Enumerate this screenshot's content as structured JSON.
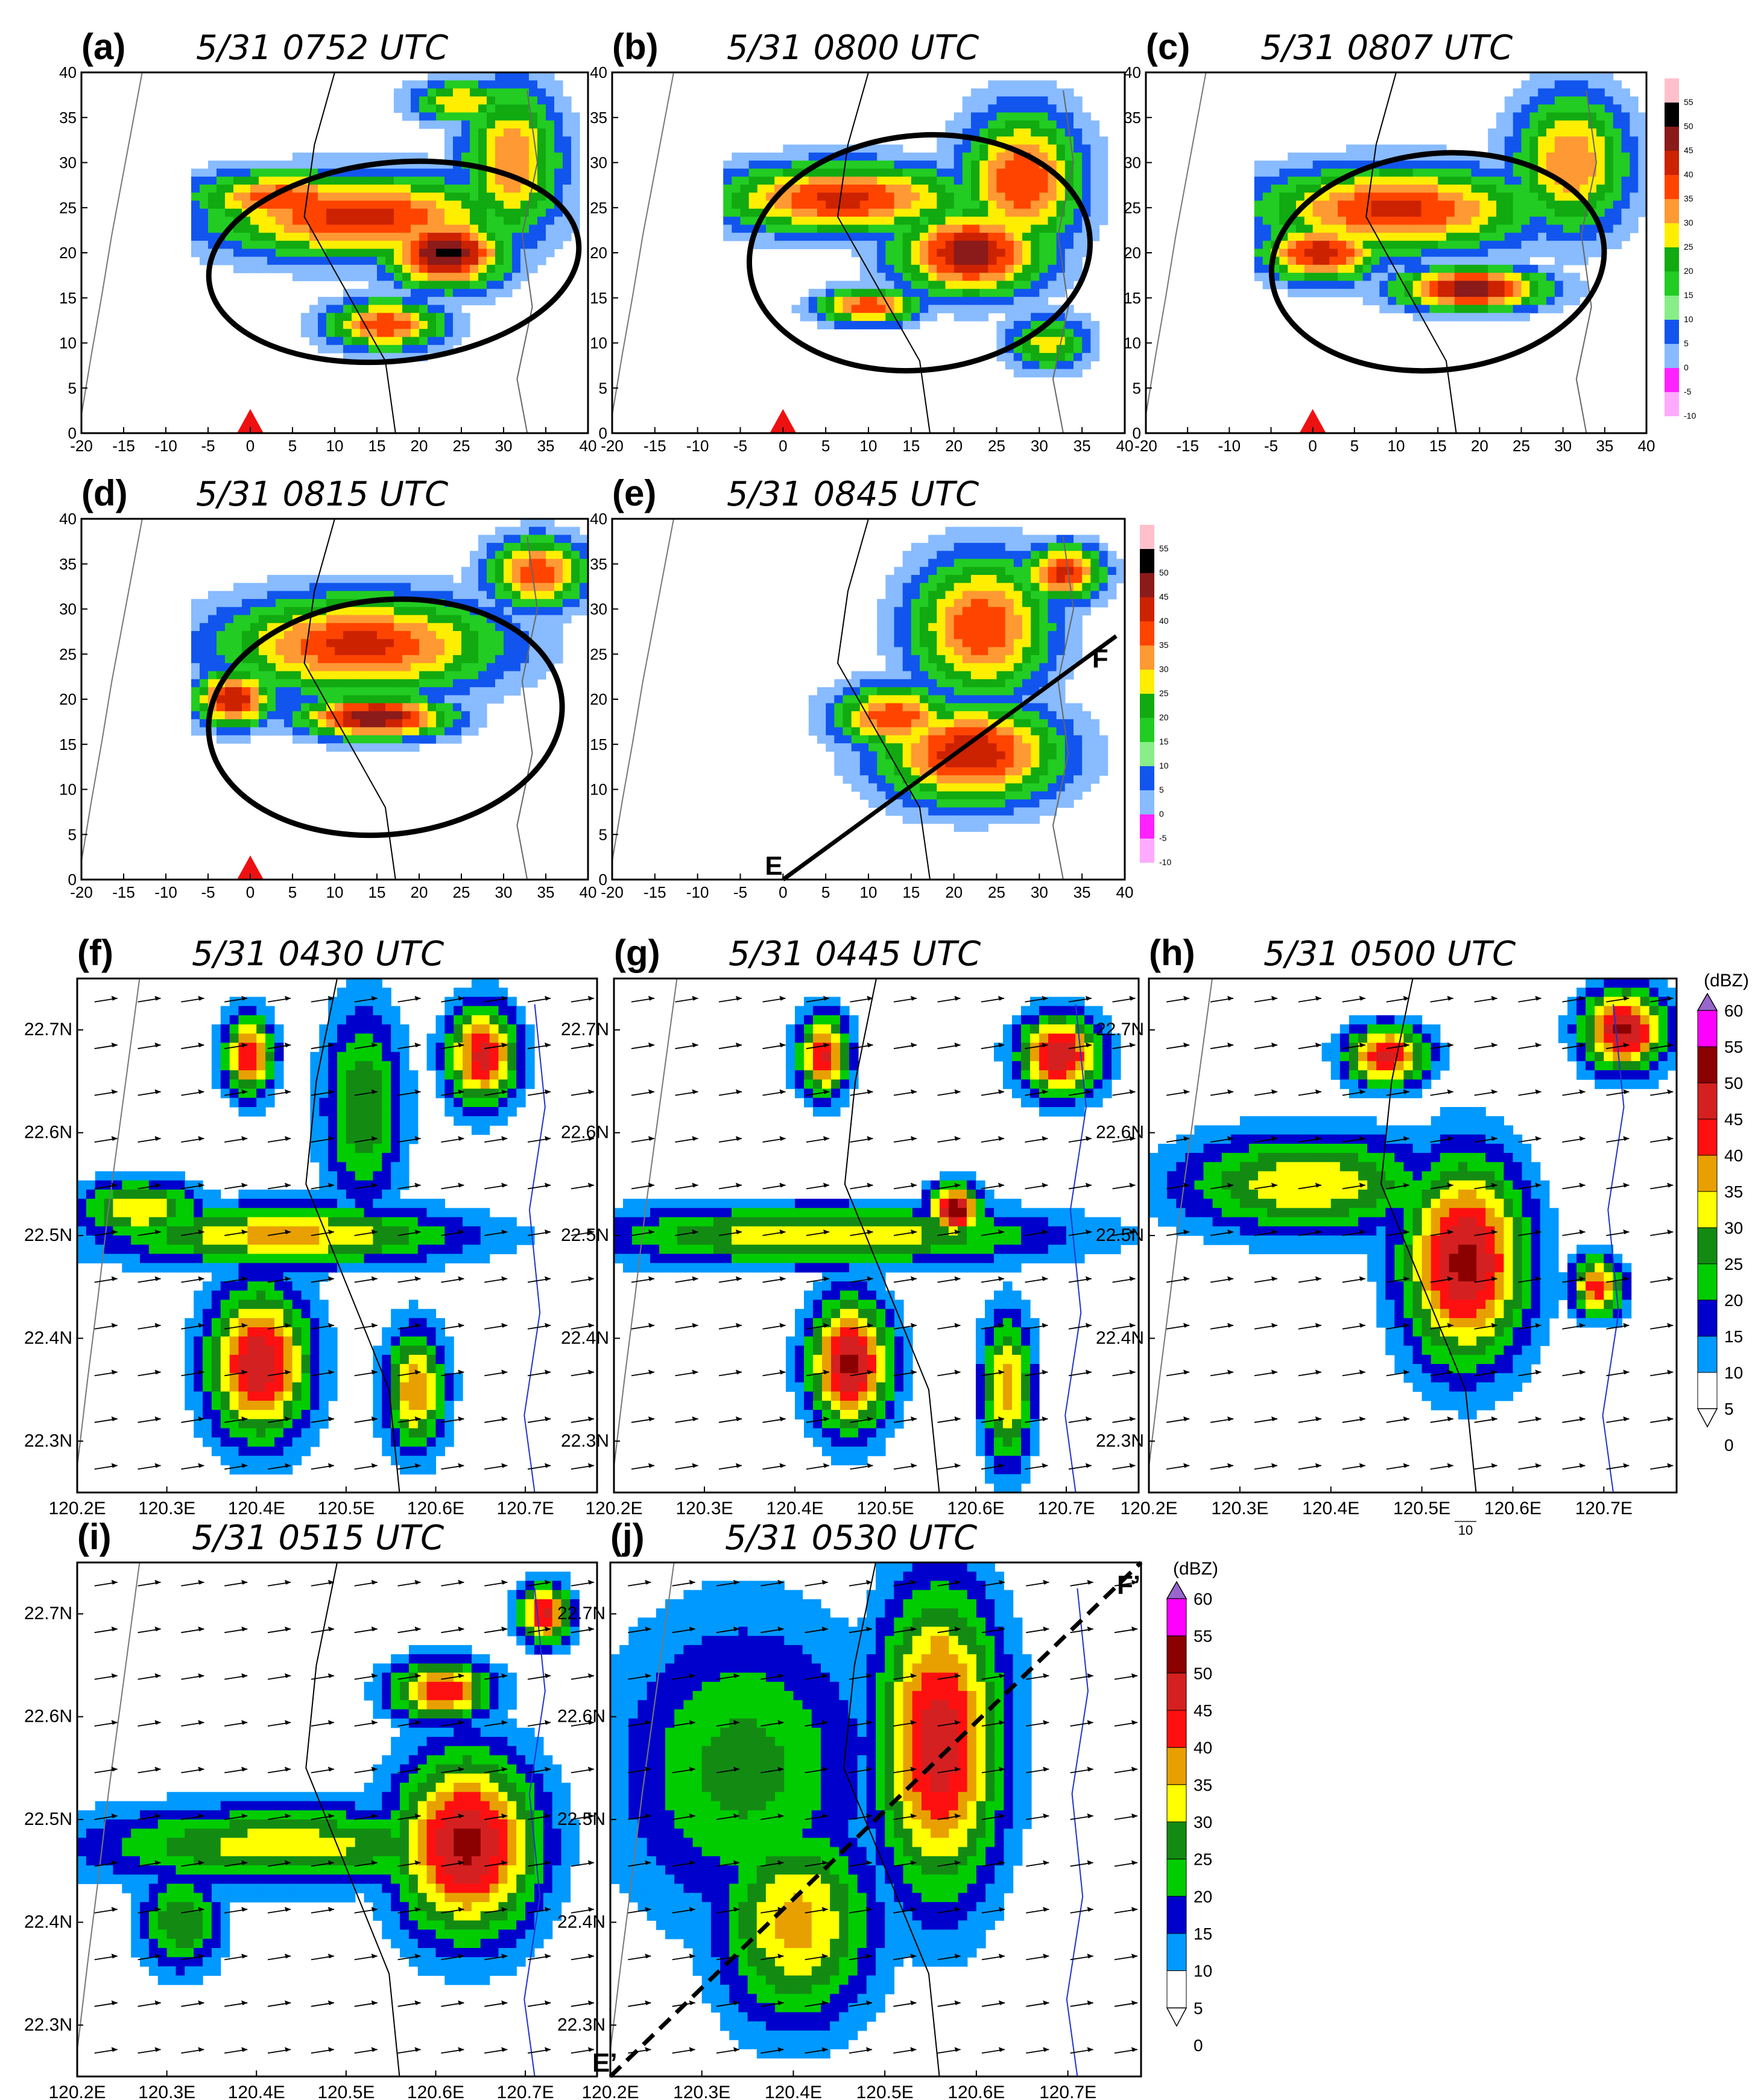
{
  "chart_data": [
    {
      "type": "heatmap",
      "label": "(a)",
      "title": "5/31 0752 UTC",
      "x_ticks": [
        "-20",
        "-15",
        "-10",
        "-5",
        "0",
        "5",
        "10",
        "15",
        "20",
        "25",
        "30",
        "35",
        "40"
      ],
      "y_ticks": [
        "0",
        "5",
        "10",
        "15",
        "20",
        "25",
        "30",
        "35",
        "40"
      ],
      "xlim": [
        -20,
        40
      ],
      "ylim": [
        0,
        40
      ],
      "radar_site": {
        "x": 0,
        "y": 0
      },
      "ellipse": {
        "cx": 17,
        "cy": 19,
        "rx": 22,
        "ry": 11
      }
    },
    {
      "type": "heatmap",
      "label": "(b)",
      "title": "5/31 0800 UTC",
      "x_ticks": [
        "-20",
        "-15",
        "-10",
        "-5",
        "0",
        "5",
        "10",
        "15",
        "20",
        "25",
        "30",
        "35",
        "40"
      ],
      "y_ticks": [
        "0",
        "5",
        "10",
        "15",
        "20",
        "25",
        "30",
        "35",
        "40"
      ],
      "xlim": [
        -20,
        40
      ],
      "ylim": [
        0,
        40
      ],
      "radar_site": {
        "x": 0,
        "y": 0
      },
      "ellipse": {
        "cx": 16,
        "cy": 20,
        "rx": 20,
        "ry": 13
      }
    },
    {
      "type": "heatmap",
      "label": "(c)",
      "title": "5/31 0807 UTC",
      "x_ticks": [
        "-20",
        "-15",
        "-10",
        "-5",
        "0",
        "5",
        "10",
        "15",
        "20",
        "25",
        "30",
        "35",
        "40"
      ],
      "y_ticks": [
        "0",
        "5",
        "10",
        "15",
        "20",
        "25",
        "30",
        "35",
        "40"
      ],
      "xlim": [
        -20,
        40
      ],
      "ylim": [
        0,
        40
      ],
      "radar_site": {
        "x": 0,
        "y": 0
      },
      "ellipse": {
        "cx": 15,
        "cy": 19,
        "rx": 20,
        "ry": 12
      }
    },
    {
      "type": "heatmap",
      "label": "(d)",
      "title": "5/31 0815 UTC",
      "x_ticks": [
        "-20",
        "-15",
        "-10",
        "-5",
        "0",
        "5",
        "10",
        "15",
        "20",
        "25",
        "30",
        "35",
        "40"
      ],
      "y_ticks": [
        "0",
        "5",
        "10",
        "15",
        "20",
        "25",
        "30",
        "35",
        "40"
      ],
      "xlim": [
        -20,
        40
      ],
      "ylim": [
        0,
        40
      ],
      "radar_site": {
        "x": 0,
        "y": 0
      },
      "ellipse": {
        "cx": 16,
        "cy": 18,
        "rx": 21,
        "ry": 13
      }
    },
    {
      "type": "heatmap",
      "label": "(e)",
      "title": "5/31 0845 UTC",
      "x_ticks": [
        "-20",
        "-15",
        "-10",
        "-5",
        "0",
        "5",
        "10",
        "15",
        "20",
        "25",
        "30",
        "35",
        "40"
      ],
      "y_ticks": [
        "0",
        "5",
        "10",
        "15",
        "20",
        "25",
        "30",
        "35",
        "40"
      ],
      "xlim": [
        -20,
        40
      ],
      "ylim": [
        0,
        40
      ],
      "cross_section": {
        "start_label": "E",
        "end_label": "F",
        "x": [
          0,
          39
        ],
        "y": [
          0,
          27
        ]
      }
    },
    {
      "type": "heatmap",
      "label": "(f)",
      "title": "5/31 0430 UTC",
      "x_ticks": [
        "120.2E",
        "120.3E",
        "120.4E",
        "120.5E",
        "120.6E",
        "120.7E"
      ],
      "y_ticks": [
        "22.3N",
        "22.4N",
        "22.5N",
        "22.6N",
        "22.7N"
      ],
      "xlim": [
        120.2,
        120.78
      ],
      "ylim": [
        22.25,
        22.75
      ]
    },
    {
      "type": "heatmap",
      "label": "(g)",
      "title": "5/31 0445 UTC",
      "x_ticks": [
        "120.2E",
        "120.3E",
        "120.4E",
        "120.5E",
        "120.6E",
        "120.7E"
      ],
      "y_ticks": [
        "22.3N",
        "22.4N",
        "22.5N",
        "22.6N",
        "22.7N"
      ],
      "xlim": [
        120.2,
        120.78
      ],
      "ylim": [
        22.25,
        22.75
      ]
    },
    {
      "type": "heatmap",
      "label": "(h)",
      "title": "5/31 0500 UTC",
      "x_ticks": [
        "120.2E",
        "120.3E",
        "120.4E",
        "120.5E",
        "120.6E",
        "120.7E"
      ],
      "y_ticks": [
        "22.3N",
        "22.4N",
        "22.5N",
        "22.6N",
        "22.7N"
      ],
      "xlim": [
        120.2,
        120.78
      ],
      "ylim": [
        22.25,
        22.75
      ],
      "vector_ref": "10"
    },
    {
      "type": "heatmap",
      "label": "(i)",
      "title": "5/31 0515 UTC",
      "x_ticks": [
        "120.2E",
        "120.3E",
        "120.4E",
        "120.5E",
        "120.6E",
        "120.7E"
      ],
      "y_ticks": [
        "22.3N",
        "22.4N",
        "22.5N",
        "22.6N",
        "22.7N"
      ],
      "xlim": [
        120.2,
        120.78
      ],
      "ylim": [
        22.25,
        22.75
      ],
      "vector_ref": "10"
    },
    {
      "type": "heatmap",
      "label": "(j)",
      "title": "5/31 0530 UTC",
      "x_ticks": [
        "120.2E",
        "120.3E",
        "120.4E",
        "120.5E",
        "120.6E",
        "120.7E"
      ],
      "y_ticks": [
        "22.3N",
        "22.4N",
        "22.5N",
        "22.6N",
        "22.7N"
      ],
      "xlim": [
        120.2,
        120.78
      ],
      "ylim": [
        22.25,
        22.75
      ],
      "vector_ref": "10",
      "cross_section": {
        "start_label": "E’",
        "end_label": "F’",
        "x": [
          120.2,
          120.78
        ],
        "y": [
          22.25,
          22.75
        ]
      }
    }
  ],
  "radar_colorbar": {
    "labels": [
      "55",
      "50",
      "45",
      "40",
      "35",
      "30",
      "25",
      "20",
      "15",
      "10",
      "5",
      "0",
      "-5",
      "-10"
    ],
    "colors": [
      "#ffc0cb",
      "#000000",
      "#8b1a1a",
      "#cc2200",
      "#ff4400",
      "#ff9933",
      "#ffee00",
      "#11aa11",
      "#22cc22",
      "#88ee88",
      "#1155ee",
      "#88bbff",
      "#ff22ff",
      "#ffaaff"
    ]
  },
  "model_colorbar": {
    "unit": "(dBZ)",
    "labels": [
      "60",
      "55",
      "50",
      "45",
      "40",
      "35",
      "30",
      "25",
      "20",
      "15",
      "10",
      "5",
      "0"
    ],
    "colors": [
      "#9966cc",
      "#ff00ff",
      "#8b0000",
      "#d42020",
      "#ff1010",
      "#e8a000",
      "#ffff00",
      "#138b13",
      "#00cc00",
      "#0000cc",
      "#0099ff",
      "#ffffff"
    ]
  }
}
